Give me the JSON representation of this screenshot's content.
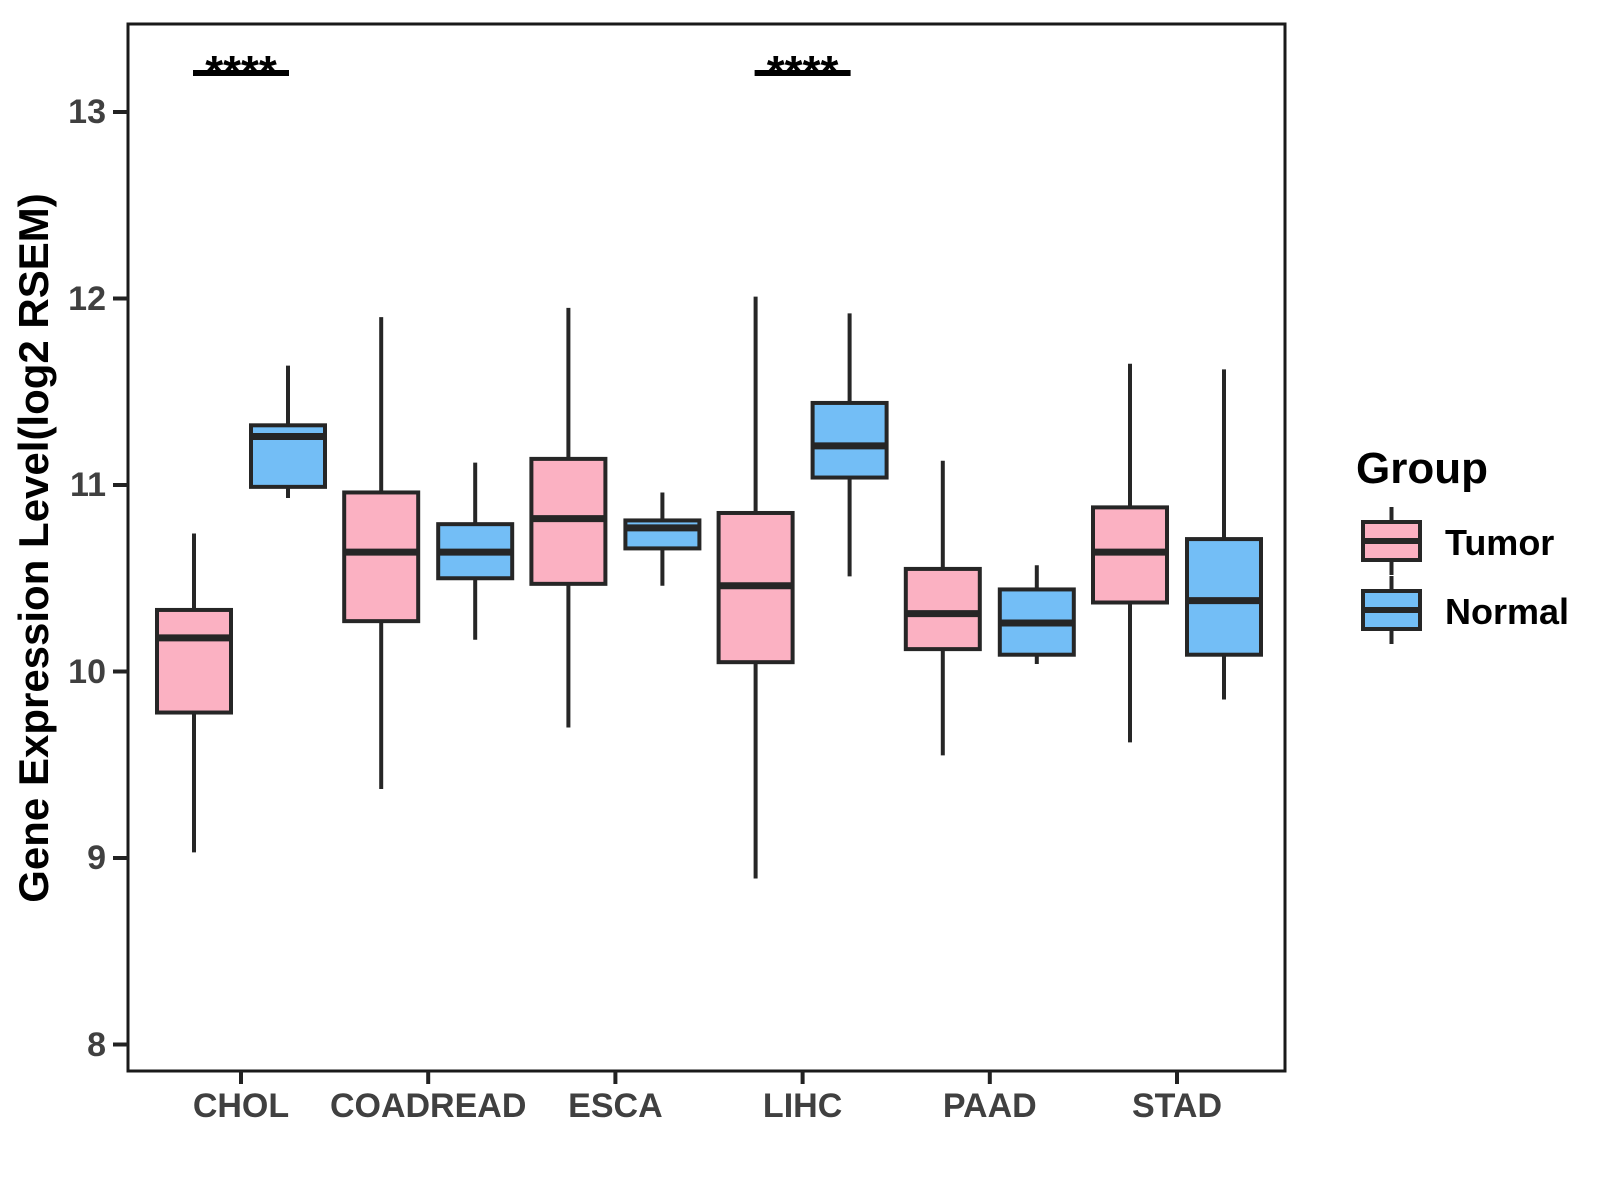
{
  "chart_data": {
    "type": "boxplot",
    "title": "",
    "ylabel": "Gene Expression Level(log2 RSEM)",
    "xlabel": "",
    "yticks": [
      "8",
      "9",
      "10",
      "11",
      "12",
      "13"
    ],
    "ytick_values": [
      8,
      9,
      10,
      11,
      12,
      13
    ],
    "ylim": [
      7.85,
      13.5
    ],
    "grid": "off",
    "legend_position": "right",
    "legend_title": "Group",
    "categories": [
      "CHOL",
      "COADREAD",
      "ESCA",
      "LIHC",
      "PAAD",
      "STAD"
    ],
    "series": [
      {
        "name": "Tumor",
        "color": "#FBB1C2",
        "boxes": [
          {
            "whisker_low": 9.03,
            "q1": 9.78,
            "median": 10.18,
            "q3": 10.33,
            "whisker_high": 10.74
          },
          {
            "whisker_low": 9.37,
            "q1": 10.27,
            "median": 10.64,
            "q3": 10.96,
            "whisker_high": 11.9
          },
          {
            "whisker_low": 9.7,
            "q1": 10.47,
            "median": 10.82,
            "q3": 11.14,
            "whisker_high": 11.95
          },
          {
            "whisker_low": 8.89,
            "q1": 10.05,
            "median": 10.46,
            "q3": 10.85,
            "whisker_high": 12.01
          },
          {
            "whisker_low": 9.55,
            "q1": 10.12,
            "median": 10.31,
            "q3": 10.55,
            "whisker_high": 11.13
          },
          {
            "whisker_low": 9.62,
            "q1": 10.37,
            "median": 10.64,
            "q3": 10.88,
            "whisker_high": 11.65
          }
        ]
      },
      {
        "name": "Normal",
        "color": "#73BEF6",
        "boxes": [
          {
            "whisker_low": 10.93,
            "q1": 10.99,
            "median": 11.26,
            "q3": 11.32,
            "whisker_high": 11.64
          },
          {
            "whisker_low": 10.17,
            "q1": 10.5,
            "median": 10.64,
            "q3": 10.79,
            "whisker_high": 11.12
          },
          {
            "whisker_low": 10.46,
            "q1": 10.66,
            "median": 10.77,
            "q3": 10.81,
            "whisker_high": 10.96
          },
          {
            "whisker_low": 10.51,
            "q1": 11.04,
            "median": 11.21,
            "q3": 11.44,
            "whisker_high": 11.92
          },
          {
            "whisker_low": 10.04,
            "q1": 10.09,
            "median": 10.26,
            "q3": 10.44,
            "whisker_high": 10.57
          },
          {
            "whisker_low": 9.85,
            "q1": 10.09,
            "median": 10.38,
            "q3": 10.71,
            "whisker_high": 11.62
          }
        ]
      }
    ],
    "significance": [
      {
        "category": "CHOL",
        "label": "****"
      },
      {
        "category": "LIHC",
        "label": "****"
      }
    ]
  }
}
